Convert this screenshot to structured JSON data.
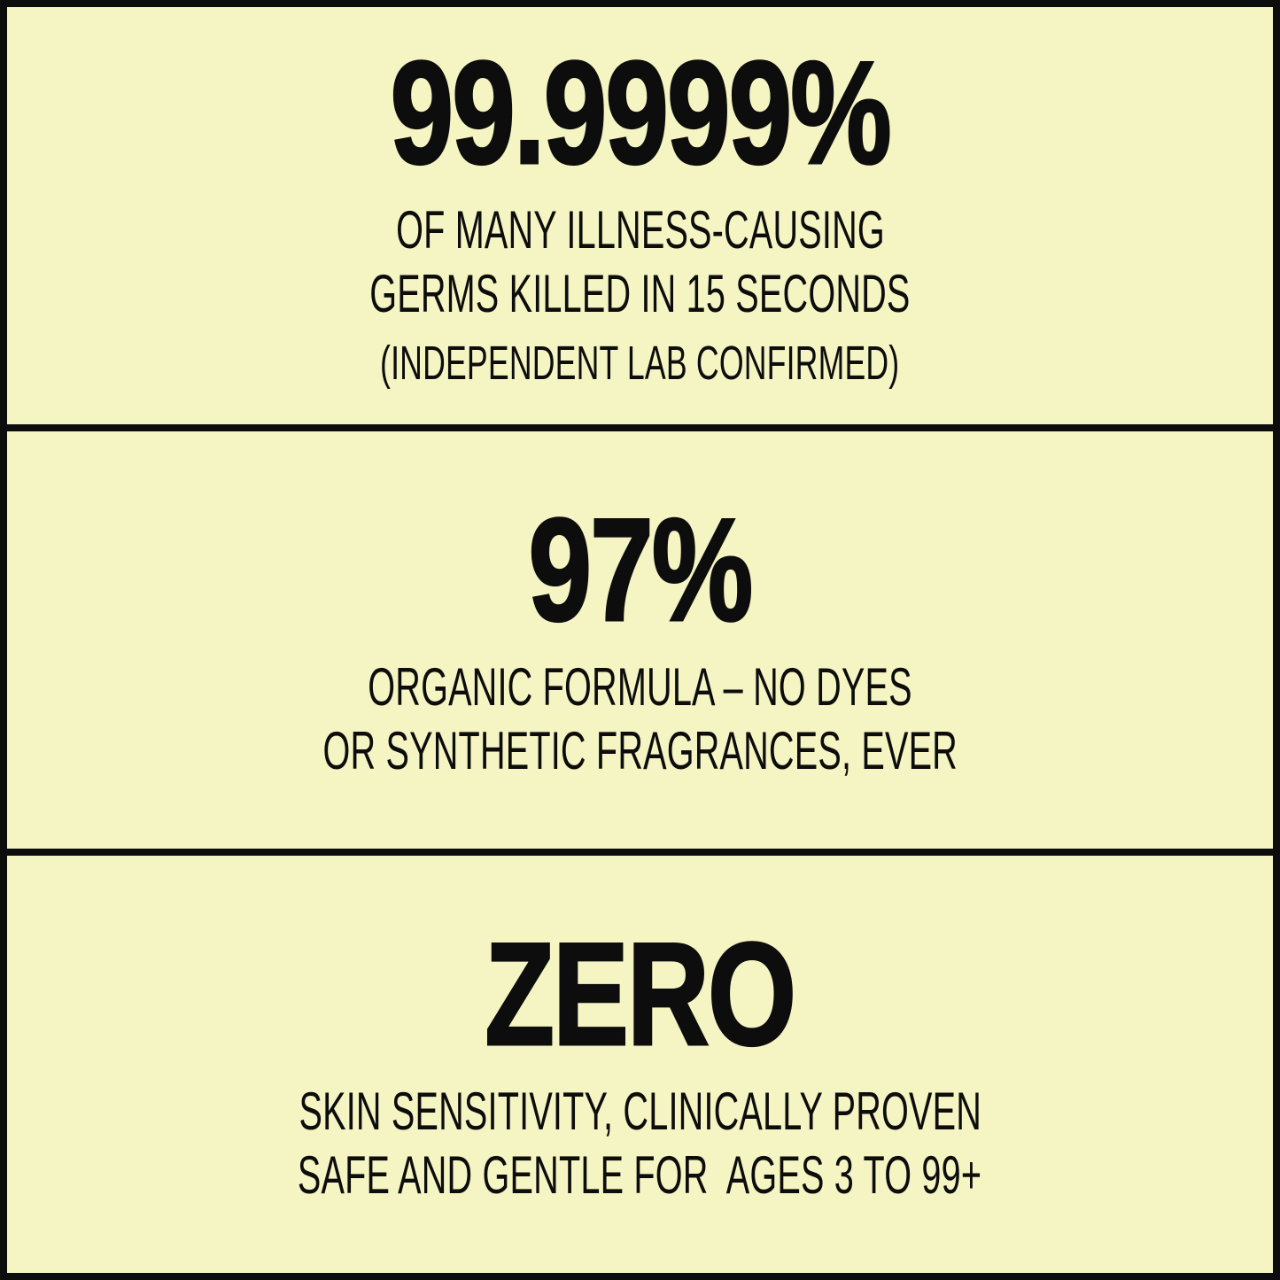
{
  "colors": {
    "background": "#f5f5c3",
    "ink": "#0d0d0d"
  },
  "sections": [
    {
      "stat": "99.9999%",
      "lines": [
        "OF MANY ILLNESS-CAUSING",
        "GERMS KILLED IN 15 SECONDS"
      ],
      "note": "(INDEPENDENT LAB CONFIRMED)"
    },
    {
      "stat": "97%",
      "lines": [
        "ORGANIC FORMULA – NO DYES",
        "OR SYNTHETIC FRAGRANCES, EVER"
      ]
    },
    {
      "stat": "ZERO",
      "lines": [
        "SKIN SENSITIVITY, CLINICALLY PROVEN",
        "SAFE AND GENTLE FOR  AGES 3 TO 99+"
      ]
    }
  ]
}
